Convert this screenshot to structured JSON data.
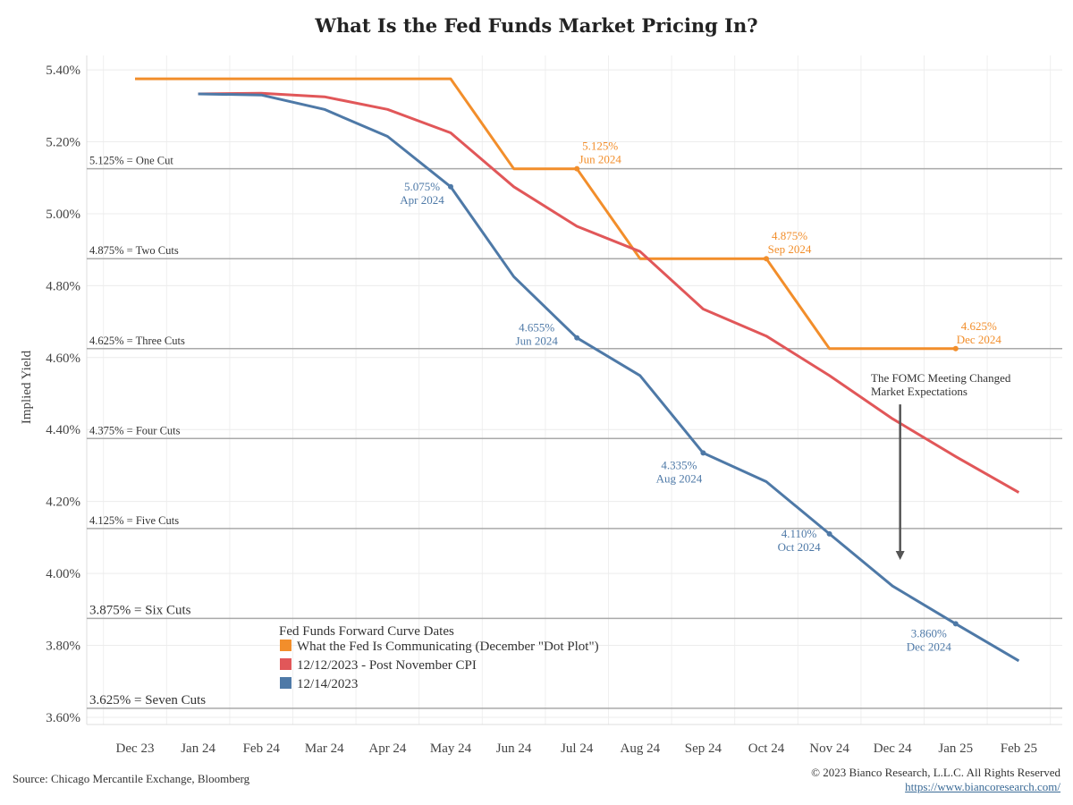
{
  "title": "What Is the Fed Funds Market Pricing In?",
  "source": "Source: Chicago Mercantile Exchange, Bloomberg",
  "copyright": "© 2023 Bianco Research, L.L.C. All Rights Reserved",
  "url": "https://www.biancoresearch.com/",
  "chart_data": {
    "type": "line",
    "ylabel": "Implied Yield",
    "xlabel": "",
    "ylim": [
      3.58,
      5.44
    ],
    "yticks": [
      {
        "value": 5.4,
        "label": "5.40%"
      },
      {
        "value": 5.2,
        "label": "5.20%"
      },
      {
        "value": 5.0,
        "label": "5.00%"
      },
      {
        "value": 4.8,
        "label": "4.80%"
      },
      {
        "value": 4.6,
        "label": "4.60%"
      },
      {
        "value": 4.4,
        "label": "4.40%"
      },
      {
        "value": 4.2,
        "label": "4.20%"
      },
      {
        "value": 4.0,
        "label": "4.00%"
      },
      {
        "value": 3.8,
        "label": "3.80%"
      },
      {
        "value": 3.6,
        "label": "3.60%"
      }
    ],
    "categories": [
      "Dec 23",
      "Jan 24",
      "Feb 24",
      "Mar 24",
      "Apr 24",
      "May 24",
      "Jun 24",
      "Jul 24",
      "Aug 24",
      "Sep 24",
      "Oct 24",
      "Nov 24",
      "Dec 24",
      "Jan 25",
      "Feb 25"
    ],
    "grid": true,
    "legend": {
      "title": "Fed Funds Forward Curve Dates",
      "position": "bottom-left"
    },
    "series": [
      {
        "name": "What the Fed Is Communicating (December \"Dot Plot\")",
        "color": "#f28e2b",
        "points": [
          [
            0,
            5.375
          ],
          [
            5,
            5.375
          ],
          [
            6,
            5.125
          ],
          [
            7,
            5.125
          ],
          [
            8,
            4.875
          ],
          [
            10,
            4.875
          ],
          [
            11,
            4.625
          ],
          [
            13,
            4.625
          ]
        ],
        "markers": [
          7,
          10,
          13
        ]
      },
      {
        "name": "12/12/2023 - Post November CPI",
        "color": "#e15759",
        "points": [
          [
            1,
            5.333
          ],
          [
            2,
            5.335
          ],
          [
            3,
            5.325
          ],
          [
            4,
            5.29
          ],
          [
            5,
            5.225
          ],
          [
            6,
            5.075
          ],
          [
            7,
            4.965
          ],
          [
            8,
            4.895
          ],
          [
            9,
            4.735
          ],
          [
            10,
            4.66
          ],
          [
            11,
            4.55
          ],
          [
            12,
            4.43
          ],
          [
            13,
            4.325
          ],
          [
            14,
            4.225
          ]
        ],
        "markers": []
      },
      {
        "name": "12/14/2023",
        "color": "#4e79a7",
        "points": [
          [
            1,
            5.333
          ],
          [
            2,
            5.33
          ],
          [
            3,
            5.29
          ],
          [
            4,
            5.215
          ],
          [
            5,
            5.075
          ],
          [
            6,
            4.825
          ],
          [
            7,
            4.655
          ],
          [
            8,
            4.55
          ],
          [
            9,
            4.335
          ],
          [
            10,
            4.255
          ],
          [
            11,
            4.11
          ],
          [
            12,
            3.965
          ],
          [
            13,
            3.86
          ],
          [
            14,
            3.757
          ]
        ],
        "markers": [
          5,
          7,
          9,
          11,
          13
        ]
      }
    ],
    "reference_lines": [
      {
        "value": 5.125,
        "label": "5.125% = One Cut"
      },
      {
        "value": 4.875,
        "label": "4.875% = Two Cuts"
      },
      {
        "value": 4.625,
        "label": "4.625% = Three Cuts"
      },
      {
        "value": 4.375,
        "label": "4.375% = Four Cuts"
      },
      {
        "value": 4.125,
        "label": "4.125% = Five Cuts"
      },
      {
        "value": 3.875,
        "label": "3.875% = Six Cuts"
      },
      {
        "value": 3.625,
        "label": "3.625% = Seven Cuts"
      }
    ],
    "annotations": [
      {
        "series": 0,
        "x": 7,
        "y": 5.125,
        "value": "5.125%",
        "date": "Jun 2024"
      },
      {
        "series": 0,
        "x": 10,
        "y": 4.875,
        "value": "4.875%",
        "date": "Sep 2024"
      },
      {
        "series": 0,
        "x": 13,
        "y": 4.625,
        "value": "4.625%",
        "date": "Dec 2024"
      },
      {
        "series": 2,
        "x": 5,
        "y": 5.075,
        "value": "5.075%",
        "date": "Apr 2024"
      },
      {
        "series": 2,
        "x": 7,
        "y": 4.655,
        "value": "4.655%",
        "date": "Jun 2024"
      },
      {
        "series": 2,
        "x": 9,
        "y": 4.335,
        "value": "4.335%",
        "date": "Aug 2024"
      },
      {
        "series": 2,
        "x": 11,
        "y": 4.11,
        "value": "4.110%",
        "date": "Oct 2024"
      },
      {
        "series": 2,
        "x": 13,
        "y": 3.86,
        "value": "3.860%",
        "date": "Dec 2024"
      }
    ],
    "callout": {
      "lines": [
        "The FOMC Meeting Changed",
        "Market Expectations"
      ],
      "arrow_x": 12.12,
      "arrow_from": 4.47,
      "arrow_to": 4.05
    }
  }
}
